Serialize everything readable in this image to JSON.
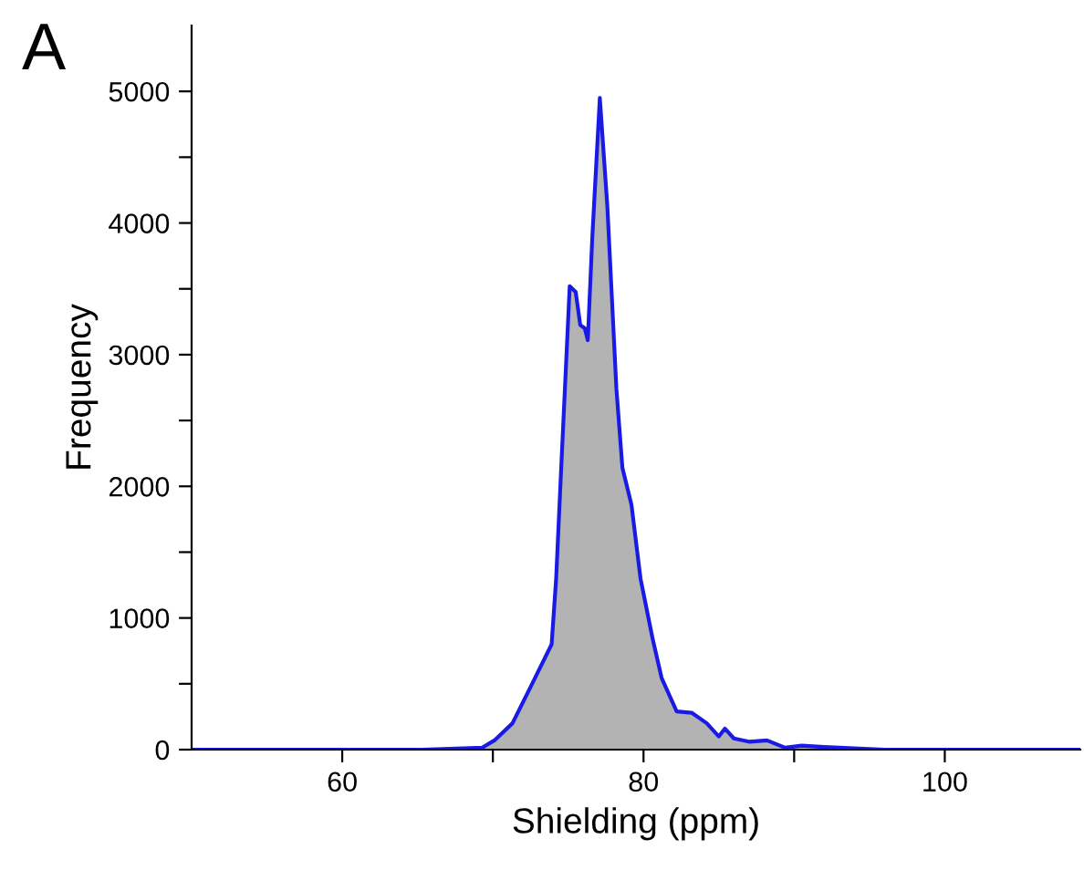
{
  "chart_data": {
    "type": "area",
    "title": "A",
    "xlabel": "Shielding (ppm)",
    "ylabel": "Frequency",
    "xlim": [
      50,
      109
    ],
    "ylim": [
      0,
      5500
    ],
    "xticks": [
      {
        "value": 60,
        "label": "60"
      },
      {
        "value": 70,
        "label": null
      },
      {
        "value": 80,
        "label": "80"
      },
      {
        "value": 90,
        "label": null
      },
      {
        "value": 100,
        "label": "100"
      }
    ],
    "yticks": [
      0,
      {
        "value": 500,
        "label": null
      },
      1000,
      {
        "value": 1500,
        "label": null
      },
      2000,
      {
        "value": 2500,
        "label": null
      },
      3000,
      {
        "value": 3500,
        "label": null
      },
      4000,
      {
        "value": 4500,
        "label": null
      },
      5000
    ],
    "grid": false,
    "legend": false,
    "series": [
      {
        "color": "#1a1ae6",
        "x": [
          50,
          60,
          65.3,
          68,
          69.3,
          70.1,
          71.3,
          72.5,
          73.9,
          74.2,
          74.5,
          75.1,
          75.5,
          75.8,
          76.1,
          76.3,
          76.6,
          77.1,
          77.6,
          78.2,
          78.6,
          79.2,
          79.8,
          80.6,
          81.2,
          82.2,
          83.2,
          84.2,
          85.0,
          85.4,
          86.0,
          87.0,
          88.2,
          89.4,
          90.5,
          92,
          96,
          109
        ],
        "values": [
          0,
          0,
          0,
          10,
          15,
          70,
          200,
          475,
          800,
          1300,
          2050,
          3520,
          3475,
          3225,
          3200,
          3110,
          3890,
          4950,
          4125,
          2740,
          2140,
          1860,
          1300,
          845,
          545,
          290,
          280,
          200,
          100,
          160,
          85,
          60,
          70,
          15,
          30,
          20,
          0,
          0
        ]
      }
    ]
  }
}
